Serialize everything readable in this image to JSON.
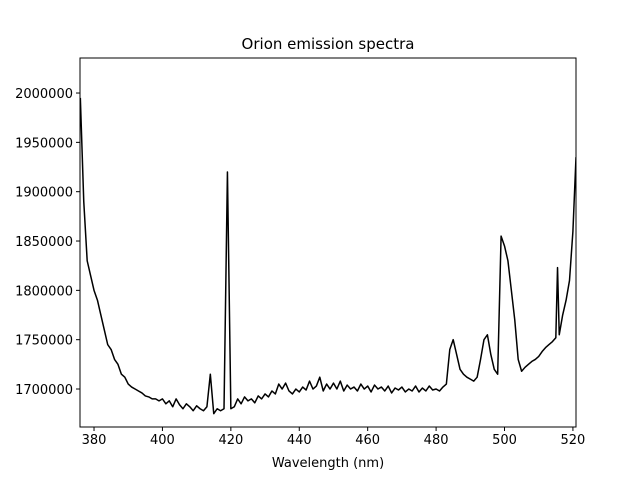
{
  "chart_data": {
    "type": "line",
    "title": "Orion emission spectra",
    "x_label": "Wavelength (nm)",
    "x": [
      376,
      377,
      378,
      379,
      380,
      381,
      382,
      383,
      384,
      385,
      386,
      387,
      388,
      389,
      390,
      391,
      392,
      393,
      394,
      395,
      396,
      397,
      398,
      399,
      400,
      401,
      402,
      403,
      404,
      405,
      406,
      407,
      408,
      409,
      410,
      411,
      412,
      413,
      414,
      415,
      416,
      417,
      418,
      419,
      420,
      421,
      422,
      423,
      424,
      425,
      426,
      427,
      428,
      429,
      430,
      431,
      432,
      433,
      434,
      435,
      436,
      437,
      438,
      439,
      440,
      441,
      442,
      443,
      444,
      445,
      446,
      447,
      448,
      449,
      450,
      451,
      452,
      453,
      454,
      455,
      456,
      457,
      458,
      459,
      460,
      461,
      462,
      463,
      464,
      465,
      466,
      467,
      468,
      469,
      470,
      471,
      472,
      473,
      474,
      475,
      476,
      477,
      478,
      479,
      480,
      481,
      482,
      483,
      484,
      485,
      486,
      487,
      488,
      489,
      490,
      491,
      492,
      493,
      494,
      495,
      496,
      497,
      498,
      499,
      500,
      501,
      502,
      503,
      504,
      505,
      506,
      507,
      508,
      509,
      510,
      511,
      512,
      513,
      514,
      515,
      515.5,
      516,
      517,
      518,
      519,
      520,
      520.9
    ],
    "series": [
      {
        "color": "#000000",
        "values": [
          1995000,
          1890000,
          1830000,
          1815000,
          1800000,
          1790000,
          1775000,
          1760000,
          1745000,
          1740000,
          1730000,
          1725000,
          1715000,
          1712000,
          1705000,
          1702000,
          1700000,
          1698000,
          1696000,
          1693000,
          1692000,
          1690000,
          1690000,
          1688000,
          1690000,
          1685000,
          1688000,
          1682000,
          1690000,
          1684000,
          1680000,
          1685000,
          1682000,
          1678000,
          1683000,
          1680000,
          1678000,
          1682000,
          1715000,
          1675000,
          1680000,
          1678000,
          1680000,
          1920000,
          1680000,
          1682000,
          1690000,
          1685000,
          1692000,
          1688000,
          1690000,
          1686000,
          1693000,
          1690000,
          1695000,
          1692000,
          1698000,
          1695000,
          1705000,
          1700000,
          1706000,
          1698000,
          1695000,
          1700000,
          1697000,
          1702000,
          1699000,
          1708000,
          1700000,
          1703000,
          1712000,
          1698000,
          1705000,
          1700000,
          1706000,
          1700000,
          1708000,
          1698000,
          1704000,
          1700000,
          1702000,
          1698000,
          1705000,
          1700000,
          1703000,
          1697000,
          1704000,
          1700000,
          1702000,
          1698000,
          1703000,
          1696000,
          1701000,
          1699000,
          1702000,
          1697000,
          1700000,
          1698000,
          1703000,
          1697000,
          1701000,
          1698000,
          1703000,
          1699000,
          1700000,
          1698000,
          1702000,
          1705000,
          1740000,
          1750000,
          1735000,
          1720000,
          1715000,
          1712000,
          1710000,
          1708000,
          1712000,
          1730000,
          1750000,
          1755000,
          1735000,
          1720000,
          1715000,
          1855000,
          1845000,
          1830000,
          1800000,
          1770000,
          1730000,
          1718000,
          1722000,
          1725000,
          1728000,
          1730000,
          1733000,
          1738000,
          1742000,
          1745000,
          1748000,
          1752000,
          1823000,
          1755000,
          1775000,
          1790000,
          1810000,
          1860000,
          1935000
        ]
      }
    ],
    "xlim": [
      375.9,
      520.9
    ],
    "xticks": [
      380,
      400,
      420,
      440,
      460,
      480,
      500,
      520
    ],
    "ylim": [
      1661500,
      2035500
    ],
    "yticks": [
      1700000,
      1750000,
      1800000,
      1850000,
      1900000,
      1950000,
      2000000
    ]
  }
}
